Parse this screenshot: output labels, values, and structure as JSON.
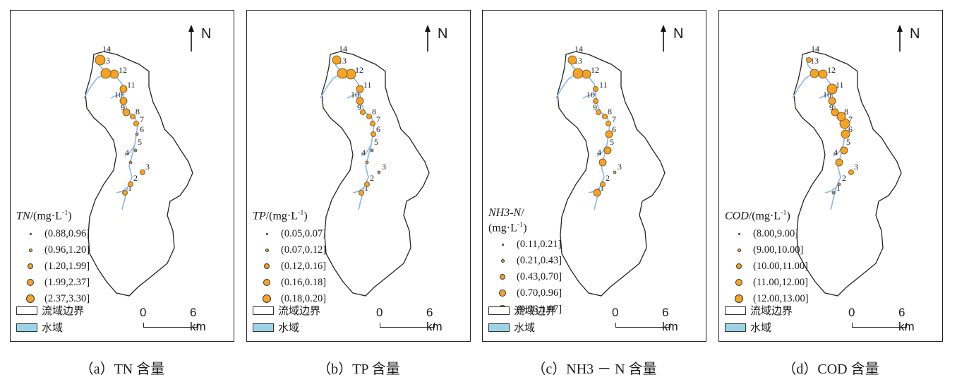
{
  "north_label": "N",
  "scale": {
    "zero_label": "0",
    "end_label": "6 km"
  },
  "legend_boxes": {
    "boundary": "流域边界",
    "water": "水域"
  },
  "colors": {
    "point_fill": "#f2a32c",
    "point_stroke": "#6b4a10",
    "water": "#8fb4e8",
    "water_box": "#9cd3e6"
  },
  "panels": [
    {
      "caption": "（a）TN 含量",
      "legend_symbol": "TN",
      "legend_unit": "/(mg·L",
      "legend_sup": "-1",
      "legend_close": ")",
      "ranges": [
        "(0.88,0.96]",
        "(0.96,1.20]",
        "(1.20,1.99]",
        "(1.99,2.37]",
        "(2.37,3.30]"
      ],
      "site_classes": {
        "1": 2,
        "2": 2,
        "3": 2,
        "4": 1,
        "5": 1,
        "6": 1,
        "7": 2,
        "8": 2,
        "9": 3,
        "10": 3,
        "11": 3,
        "12": 4,
        "13": 5,
        "14": 5
      }
    },
    {
      "caption": "（b）TP 含量",
      "legend_symbol": "TP",
      "legend_unit": "/(mg·L",
      "legend_sup": "-1",
      "legend_close": ")",
      "ranges": [
        "(0.05,0.07]",
        "(0.07,0.12]",
        "(0.12,0.16]",
        "(0.16,0.18]",
        "(0.18,0.20]"
      ],
      "site_classes": {
        "1": 2,
        "2": 2,
        "3": 1,
        "4": 1,
        "5": 1,
        "6": 2,
        "7": 2,
        "8": 2,
        "9": 2,
        "10": 3,
        "11": 3,
        "12": 5,
        "13": 5,
        "14": 4
      }
    },
    {
      "caption": "（c）NH3 － N 含量",
      "legend_symbol": "NH3-N",
      "legend_unit": "/\n(mg·L",
      "legend_sup": "-1",
      "legend_close": ")",
      "ranges": [
        "(0.11,0.21]",
        "(0.21,0.43]",
        "(0.43,0.70]",
        "(0.70,0.96]",
        "(0.96,1.07]"
      ],
      "site_classes": {
        "1": 3,
        "2": 2,
        "3": 1,
        "4": 3,
        "5": 3,
        "6": 3,
        "7": 2,
        "8": 2,
        "9": 2,
        "10": 2,
        "11": 2,
        "12": 4,
        "13": 5,
        "14": 4
      }
    },
    {
      "caption": "（d）COD 含量",
      "legend_symbol": "COD",
      "legend_unit": "/(mg·L",
      "legend_sup": "-1",
      "legend_close": ")",
      "ranges": [
        "(8.00,9.00]",
        "(9.00,10.00]",
        "(10.00,11.00]",
        "(11.00,12.00]",
        "(12.00,13.00]"
      ],
      "site_classes": {
        "1": 1,
        "2": 1,
        "3": 2,
        "4": 3,
        "5": 3,
        "6": 4,
        "7": 5,
        "8": 4,
        "9": 3,
        "10": 3,
        "11": 5,
        "12": 4,
        "13": 4,
        "14": 2
      }
    }
  ],
  "site_labels": [
    "1",
    "2",
    "3",
    "4",
    "5",
    "6",
    "7",
    "8",
    "9",
    "10",
    "11",
    "12",
    "13",
    "14"
  ]
}
